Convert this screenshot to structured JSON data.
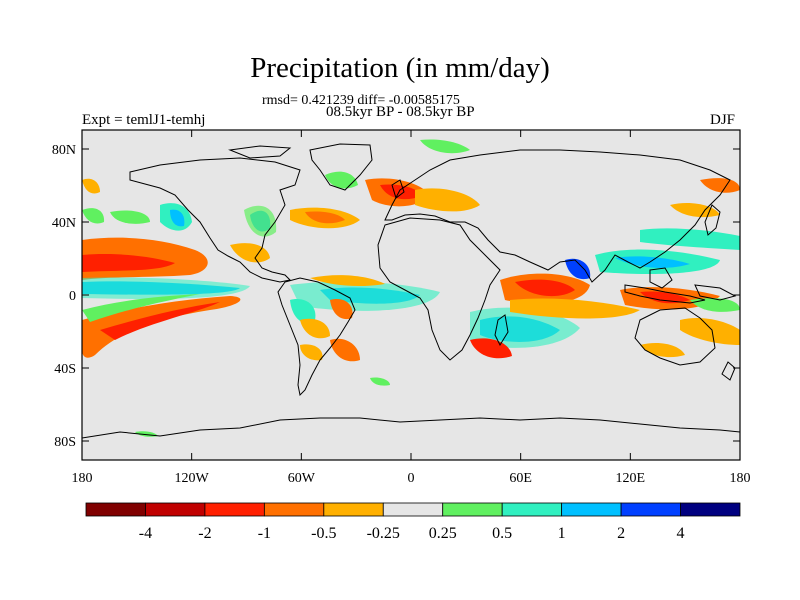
{
  "title": "Precipitation (in mm/day)",
  "stats_line": "rmsd= 0.421239 diff= -0.00585175",
  "period_line": "08.5kyr BP - 08.5kyr BP",
  "experiment_label": "Expt = temlJ1-temhj",
  "season": "DJF",
  "lon_ticks": [
    "180",
    "120W",
    "60W",
    "0",
    "60E",
    "120E",
    "180"
  ],
  "lat_ticks": [
    "80N",
    "40N",
    "0",
    "40S",
    "80S"
  ],
  "colorbar": {
    "colors": [
      "#800000",
      "#c00000",
      "#ff2000",
      "#ff7000",
      "#ffb000",
      "#e6e6e6",
      "#60f060",
      "#30f0c0",
      "#00c0ff",
      "#0040ff",
      "#000080"
    ],
    "labels": [
      "-4",
      "-2",
      "-1",
      "-0.5",
      "-0.25",
      "0.25",
      "0.5",
      "1",
      "2",
      "4"
    ]
  },
  "palette": {
    "land_outline": "#000000",
    "ocean_neutral": "#e6e6e6",
    "dry_strong": "#ff2000",
    "dry_mid": "#ff7000",
    "dry_weak": "#ffb000",
    "wet_weak": "#60f060",
    "wet_mid": "#30f0c0",
    "wet_strong": "#00c0ff",
    "wet_max": "#0040ff"
  }
}
